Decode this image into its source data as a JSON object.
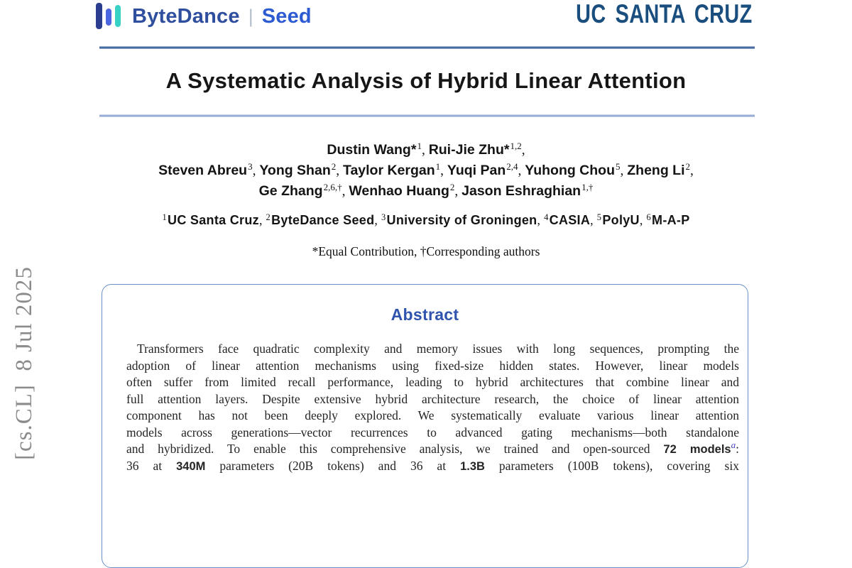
{
  "branding": {
    "bytedance_text": "ByteDance",
    "separator": "|",
    "seed_text": "Seed",
    "ucsc_text": "UC SANTA CRUZ"
  },
  "watermark": {
    "text": "[cs.CL]  8 Jul 2025"
  },
  "title": "A Systematic Analysis of Hybrid Linear Attention",
  "authors": {
    "lines": [
      {
        "items": [
          {
            "name": "Dustin Wang*",
            "sup": "1"
          },
          {
            "name": "Rui-Jie Zhu*",
            "sup": "1,2"
          }
        ],
        "trailing_comma": true
      },
      {
        "items": [
          {
            "name": "Steven Abreu",
            "sup": "3"
          },
          {
            "name": "Yong Shan",
            "sup": "2"
          },
          {
            "name": "Taylor Kergan",
            "sup": "1"
          },
          {
            "name": "Yuqi Pan",
            "sup": "2,4"
          },
          {
            "name": "Yuhong Chou",
            "sup": "5"
          },
          {
            "name": "Zheng Li",
            "sup": "2"
          }
        ],
        "trailing_comma": true
      },
      {
        "items": [
          {
            "name": "Ge Zhang",
            "sup": "2,6,†"
          },
          {
            "name": "Wenhao Huang",
            "sup": "2"
          },
          {
            "name": "Jason Eshraghian",
            "sup": "1,†"
          }
        ],
        "trailing_comma": false
      }
    ]
  },
  "affiliations": {
    "items": [
      {
        "sup": "1",
        "name": "UC Santa Cruz"
      },
      {
        "sup": "2",
        "name": "ByteDance Seed"
      },
      {
        "sup": "3",
        "name": "University of Groningen"
      },
      {
        "sup": "4",
        "name": "CASIA"
      },
      {
        "sup": "5",
        "name": "PolyU"
      },
      {
        "sup": "6",
        "name": "M-A-P"
      }
    ]
  },
  "contribution_note": "*Equal Contribution, †Corresponding authors",
  "abstract": {
    "heading": "Abstract",
    "lines": [
      [
        {
          "t": "Transformers face quadratic complexity and memory issues with long sequences, prompting the"
        }
      ],
      [
        {
          "t": "adoption of linear attention mechanisms using fixed-size hidden states. However, linear models"
        }
      ],
      [
        {
          "t": "often suffer from limited recall performance, leading to hybrid architectures that combine linear and"
        }
      ],
      [
        {
          "t": "full attention layers. Despite extensive hybrid architecture research, the choice of linear attention"
        }
      ],
      [
        {
          "t": "component has not been deeply explored. We systematically evaluate various linear attention"
        }
      ],
      [
        {
          "t": "models across generations—vector recurrences to advanced gating mechanisms—both standalone"
        }
      ],
      [
        {
          "t": "and hybridized. To enable this comprehensive analysis, we trained and open-sourced "
        },
        {
          "t": "72 models",
          "b": true
        },
        {
          "t": "a",
          "sup": true
        },
        {
          "t": ":"
        }
      ],
      [
        {
          "t": "36 at "
        },
        {
          "t": "340M",
          "b": true
        },
        {
          "t": " parameters (20B tokens) and 36 at "
        },
        {
          "t": "1.3B",
          "b": true
        },
        {
          "t": " parameters (100B tokens), covering six"
        }
      ]
    ]
  },
  "colors": {
    "bytedance_navy": "#2f4f9e",
    "seed_blue": "#2d5bd1",
    "logo_bar_dark": "#2b3d8f",
    "logo_bar_blue": "#4a66e0",
    "logo_bar_teal": "#38d1c6",
    "ucsc_blue": "#1a4e7e",
    "rule_blue": "#44699f",
    "rule_light_blue": "#93a9d2",
    "abstract_border": "#6b8fc9",
    "abstract_heading_blue": "#3054ae",
    "footnote_marker_blue": "#4446c8",
    "watermark_gray": "#8b8b8b"
  }
}
